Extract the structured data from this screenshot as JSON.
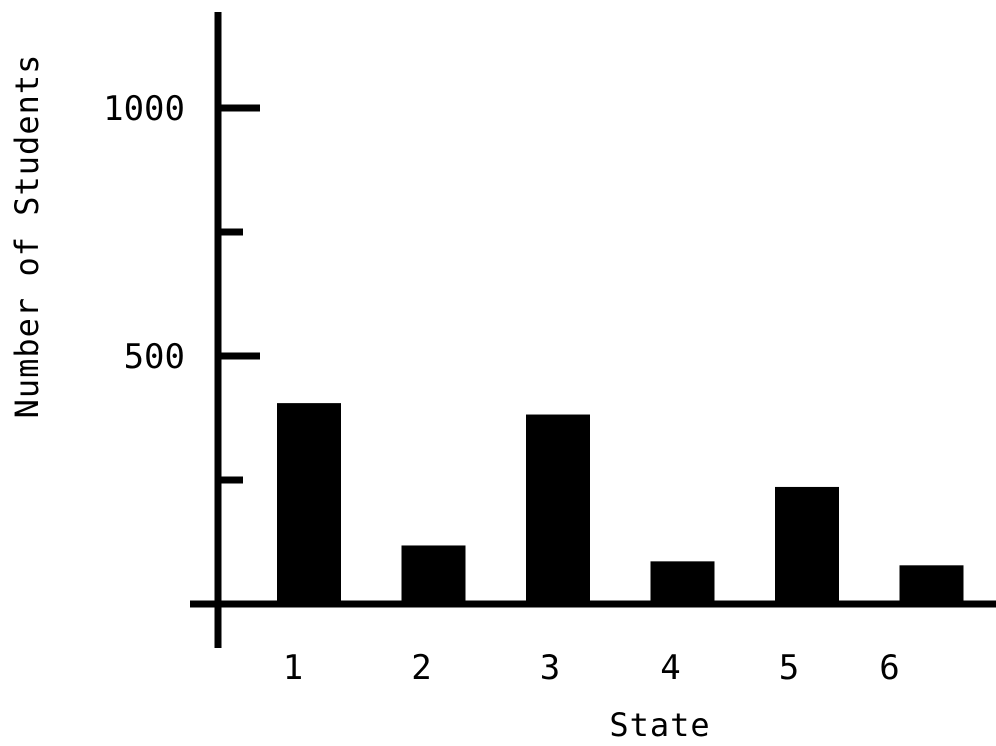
{
  "chart_data": {
    "type": "bar",
    "title": "",
    "xlabel": "State",
    "ylabel": "Number of Students",
    "categories": [
      "1",
      "2",
      "3",
      "4",
      "5",
      "6"
    ],
    "values": [
      405,
      118,
      382,
      86,
      236,
      78
    ],
    "ylim": [
      0,
      1200
    ],
    "yticks_labeled": [
      500,
      1000
    ],
    "yticks_minor": [
      250,
      750
    ],
    "grid": false,
    "legend": "none",
    "bar_color": "#000000"
  }
}
